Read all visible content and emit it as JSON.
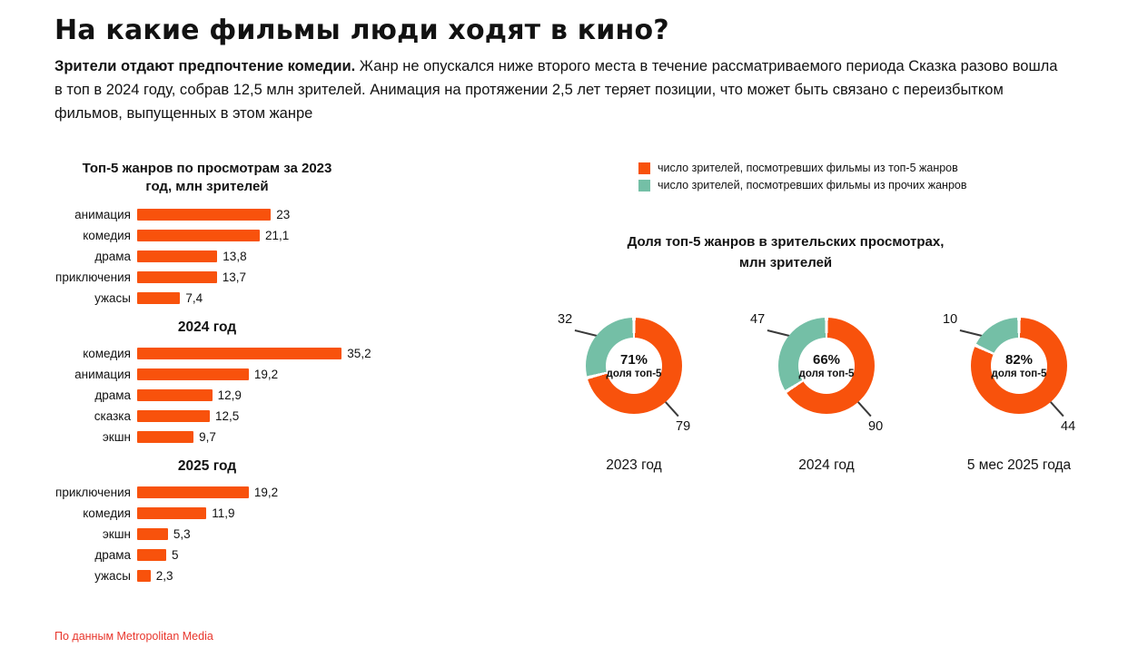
{
  "page": {
    "title": "На какие фильмы люди ходят в кино?",
    "intro_lead": "Зрители отдают предпочтение комедии.",
    "intro_rest": " Жанр не опускался ниже второго места в течение рассматриваемого периода Сказка разово вошла в топ в 2024 году, собрав 12,5 млн зрителей. Анимация на протяжении 2,5 лет теряет позиции, что может быть связано с переизбытком фильмов, выпущенных в этом жанре",
    "source": "По данным Metropolitan Media"
  },
  "colors": {
    "top5": "#F8520C",
    "other": "#74BFA6",
    "source_text": "#E8362C"
  },
  "chart_data": [
    {
      "type": "bar",
      "title": "Топ-5 жанров по просмотрам за 2023 год, млн зрителей",
      "title_lines": [
        "Топ-5 жанров по просмотрам за 2023",
        "год, млн зрителей"
      ],
      "categories": [
        "анимация",
        "комедия",
        "драма",
        "приключения",
        "ужасы"
      ],
      "values": [
        23,
        21.1,
        13.8,
        13.7,
        7.4
      ],
      "value_labels": [
        "23",
        "21,1",
        "13,8",
        "13,7",
        "7,4"
      ],
      "xlim": [
        0,
        40
      ],
      "unit": "млн зрителей"
    },
    {
      "type": "bar",
      "title": "2024 год",
      "categories": [
        "комедия",
        "анимация",
        "драма",
        "сказка",
        "экшн"
      ],
      "values": [
        35.2,
        19.2,
        12.9,
        12.5,
        9.7
      ],
      "value_labels": [
        "35,2",
        "19,2",
        "12,9",
        "12,5",
        "9,7"
      ],
      "xlim": [
        0,
        40
      ],
      "unit": "млн зрителей"
    },
    {
      "type": "bar",
      "title": "2025 год",
      "categories": [
        "приключения",
        "комедия",
        "экшн",
        "драма",
        "ужасы"
      ],
      "values": [
        19.2,
        11.9,
        5.3,
        5,
        2.3
      ],
      "value_labels": [
        "19,2",
        "11,9",
        "5,3",
        "5",
        "2,3"
      ],
      "xlim": [
        0,
        40
      ],
      "unit": "млн зрителей"
    },
    {
      "type": "pie",
      "title": "Доля топ-5 жанров в зрительских просмотрах, млн зрителей",
      "title_lines": [
        "Доля топ-5 жанров в зрительских просмотрах,",
        "млн зрителей"
      ],
      "legend": [
        {
          "label": "число зрителей, посмотревших фильмы из топ-5 жанров",
          "color_key": "top5"
        },
        {
          "label": "число зрителей, посмотревших фильмы из прочих жанров",
          "color_key": "other"
        }
      ],
      "donuts": [
        {
          "period": "2023 год",
          "top5_value": 79,
          "other_value": 32,
          "top5_pct": 71,
          "center_pct_label": "71%",
          "center_sub_label": "доля топ-5"
        },
        {
          "period": "2024 год",
          "top5_value": 90,
          "other_value": 47,
          "top5_pct": 66,
          "center_pct_label": "66%",
          "center_sub_label": "доля топ-5"
        },
        {
          "period": "5 мес 2025 года",
          "top5_value": 44,
          "other_value": 10,
          "top5_pct": 82,
          "center_pct_label": "82%",
          "center_sub_label": "доля топ-5"
        }
      ]
    }
  ]
}
